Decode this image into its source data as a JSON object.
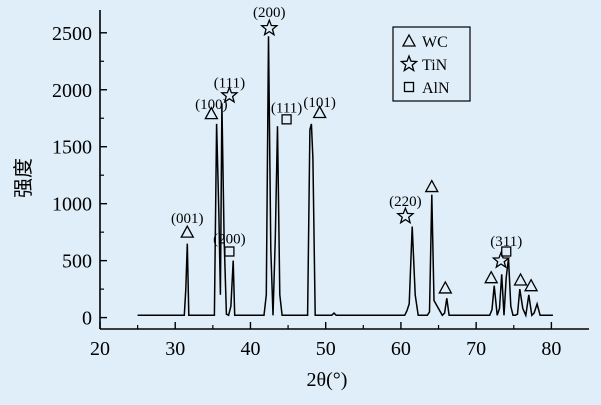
{
  "chart_data": {
    "type": "line",
    "xlabel": "2θ(°)",
    "ylabel": "强度",
    "xlim": [
      20,
      85
    ],
    "ylim": [
      -100,
      2700
    ],
    "x_ticks": [
      "20",
      "30",
      "40",
      "50",
      "60",
      "70",
      "80"
    ],
    "y_ticks": [
      "0",
      "500",
      "1000",
      "1500",
      "2000",
      "2500"
    ],
    "x_tick_values": [
      20,
      30,
      40,
      50,
      60,
      70,
      80
    ],
    "y_tick_values": [
      0,
      500,
      1000,
      1500,
      2000,
      2500
    ],
    "grid": false,
    "legend_position": "top-right",
    "legend": [
      {
        "marker": "triangle",
        "label": "WC"
      },
      {
        "marker": "star",
        "label": "TiN"
      },
      {
        "marker": "square",
        "label": "AlN"
      }
    ],
    "series": [
      {
        "x": [
          25,
          31.2,
          31.4,
          31.6,
          31.8,
          32.0,
          35.2,
          35.5,
          35.8,
          36.0,
          36.2,
          36.5,
          36.8,
          37.1,
          37.4,
          37.7,
          37.9,
          38.2,
          38.5,
          41.8,
          42.1,
          42.4,
          42.7,
          43.0,
          43.3,
          43.6,
          43.9,
          44.2,
          44.5,
          47.6,
          47.9,
          48.1,
          48.3,
          48.6,
          48.9,
          50.8,
          51.1,
          51.4,
          51.7,
          60.5,
          60.8,
          61.1,
          61.5,
          61.9,
          62.3,
          63.5,
          63.8,
          64.1,
          64.4,
          65.5,
          65.8,
          66.1,
          66.4,
          71.8,
          72.1,
          72.4,
          72.8,
          73.1,
          73.4,
          73.7,
          74.0,
          74.3,
          74.6,
          74.9,
          75.2,
          75.5,
          75.8,
          76.2,
          76.6,
          77.0,
          77.4,
          77.7,
          78.1,
          78.5,
          80.2
        ],
        "y": [
          20,
          20,
          250,
          650,
          20,
          20,
          20,
          1700,
          900,
          200,
          1880,
          700,
          30,
          20,
          100,
          500,
          20,
          20,
          20,
          20,
          200,
          2470,
          600,
          20,
          700,
          1680,
          200,
          20,
          20,
          20,
          1650,
          1700,
          1400,
          20,
          20,
          20,
          40,
          20,
          20,
          20,
          60,
          120,
          800,
          200,
          20,
          20,
          50,
          1080,
          150,
          20,
          40,
          170,
          20,
          20,
          70,
          280,
          20,
          80,
          380,
          20,
          350,
          520,
          100,
          20,
          20,
          30,
          250,
          80,
          20,
          200,
          20,
          40,
          120,
          20,
          20
        ]
      }
    ],
    "annotations": [
      {
        "text": "(001)",
        "x": 31.6,
        "y": 830,
        "marker": "triangle",
        "marker_y": 680
      },
      {
        "text": "(100)",
        "x": 34.8,
        "y": 1830,
        "marker": "triangle",
        "marker_y": 1720
      },
      {
        "text": "(111)",
        "x": 37.2,
        "y": 2020,
        "marker": "star",
        "marker_y": 1880
      },
      {
        "text": "(200)",
        "x": 37.2,
        "y": 650,
        "marker": "square",
        "marker_y": 510
      },
      {
        "text": "(200)",
        "x": 42.5,
        "y": 2640,
        "marker": "star",
        "marker_y": 2470
      },
      {
        "text": "(111)",
        "x": 44.8,
        "y": 1800,
        "marker": "square",
        "marker_y": 1670
      },
      {
        "text": "(101)",
        "x": 49.2,
        "y": 1850,
        "marker": "triangle",
        "marker_y": 1730
      },
      {
        "text": "(220)",
        "x": 60.6,
        "y": 980,
        "marker": "star",
        "marker_y": 820
      },
      {
        "text": "(311)",
        "x": 74.0,
        "y": 630,
        "marker": "square",
        "marker_y": 510
      },
      {
        "text": "",
        "x": 64.1,
        "y": 0,
        "marker": "triangle",
        "marker_y": 1080
      },
      {
        "text": "",
        "x": 65.9,
        "y": 0,
        "marker": "triangle",
        "marker_y": 190
      },
      {
        "text": "",
        "x": 72.0,
        "y": 0,
        "marker": "triangle",
        "marker_y": 280
      },
      {
        "text": "",
        "x": 73.3,
        "y": 0,
        "marker": "star",
        "marker_y": 430
      },
      {
        "text": "",
        "x": 75.9,
        "y": 0,
        "marker": "triangle",
        "marker_y": 260
      },
      {
        "text": "",
        "x": 77.3,
        "y": 0,
        "marker": "triangle",
        "marker_y": 210
      }
    ]
  }
}
